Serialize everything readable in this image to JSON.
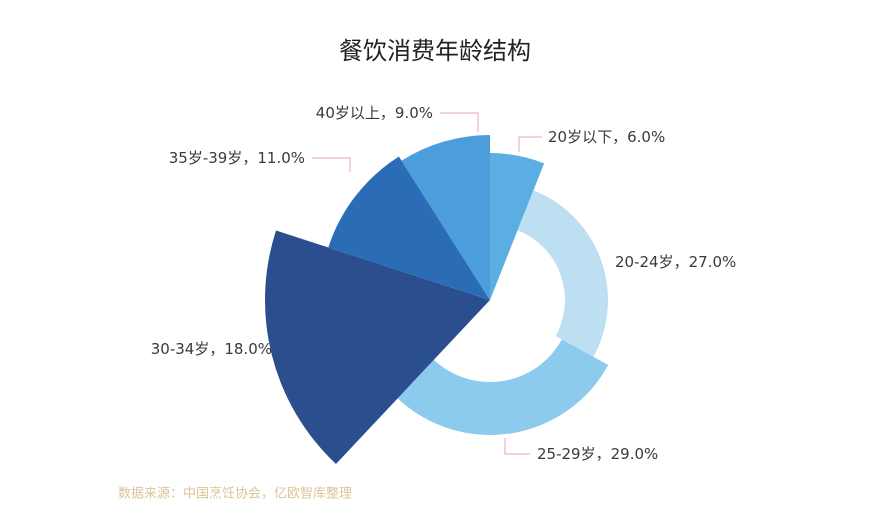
{
  "chart_data": {
    "type": "rose-pie",
    "title": "餐饮消费年龄结构",
    "categories": [
      "20岁以下",
      "20-24岁",
      "25-29岁",
      "30-34岁",
      "35岁-39岁",
      "40岁以上"
    ],
    "values": [
      6.0,
      27.0,
      29.0,
      18.0,
      11.0,
      9.0
    ],
    "value_labels": [
      "6.0%",
      "27.0%",
      "29.0%",
      "18.0%",
      "11.0%",
      "9.0%"
    ],
    "label_separator": "，",
    "colors": [
      "#5aaee2",
      "#bcdff2",
      "#8ccbed",
      "#2b4f8e",
      "#2b6cb6",
      "#4c9ddb"
    ],
    "source": "数据来源：中国烹饪协会，亿欧智库整理"
  }
}
